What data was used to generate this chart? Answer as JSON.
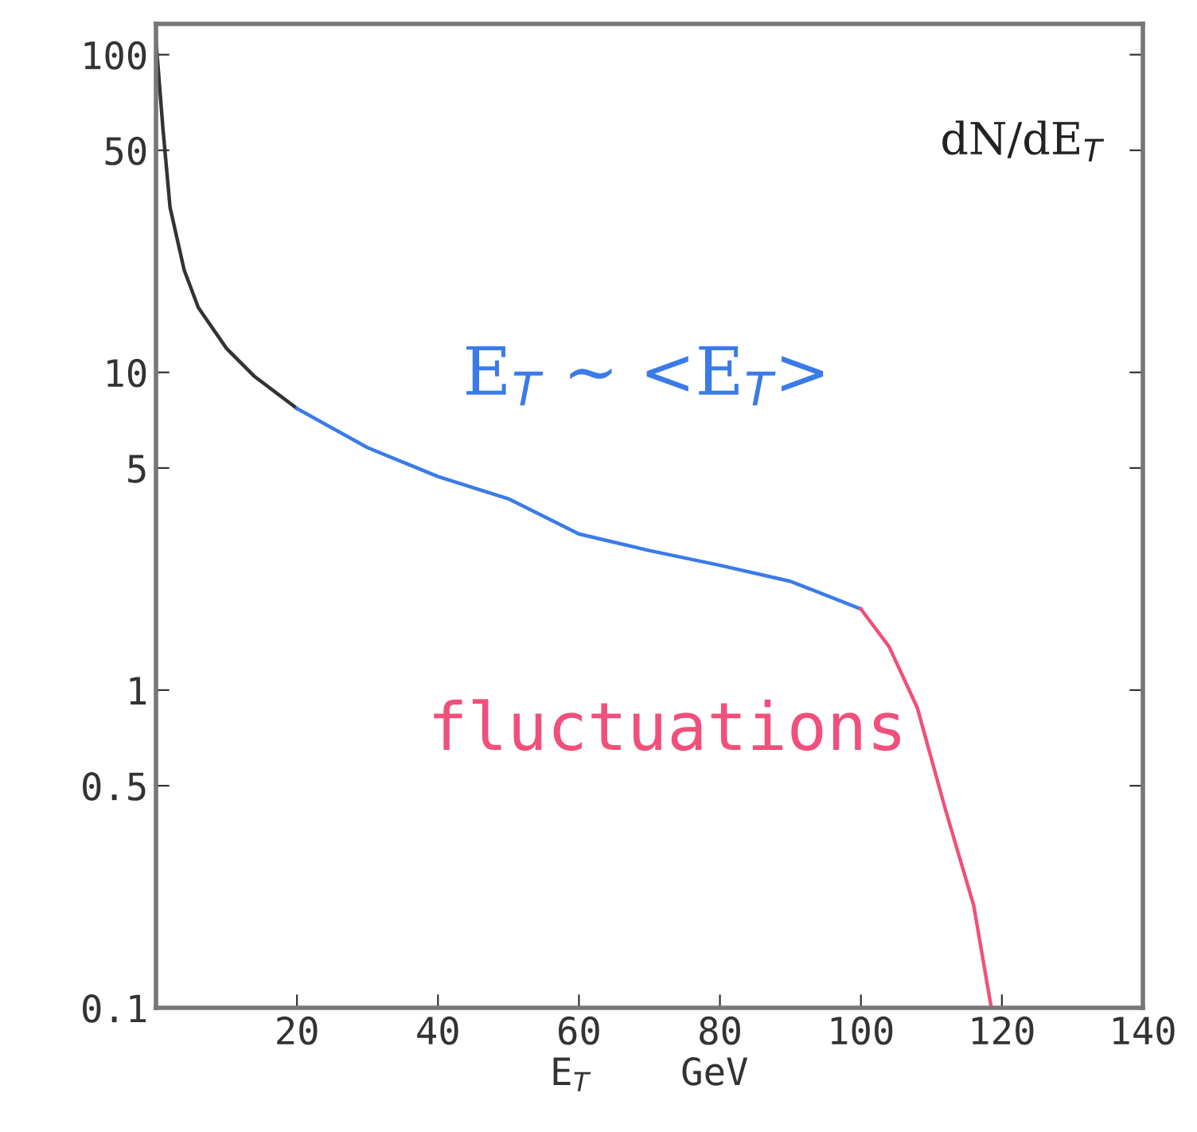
{
  "chart_data": {
    "type": "line",
    "ylabel": "dN/dE$_{T}$",
    "xlabel": "E$_{T}$    GeV",
    "log": "y",
    "xlim": [
      0,
      140
    ],
    "xticks": [
      20,
      40,
      60,
      80,
      100,
      120,
      140
    ],
    "ylim": [
      0.1,
      125
    ],
    "yticks": [
      0.1,
      0.5,
      1,
      5,
      10,
      50,
      100
    ],
    "grid": false,
    "legend": false,
    "series": [
      {
        "color": "#333333",
        "x": [
          0,
          1,
          2,
          4,
          6,
          10,
          14,
          20
        ],
        "values": [
          111,
          58,
          33,
          21,
          16,
          11.9,
          9.7,
          7.7
        ]
      },
      {
        "name": "E$_{T}$ ~ <E$_{T}$>",
        "color": "#3a7be8",
        "x": [
          20,
          30,
          40,
          50,
          60,
          70,
          80,
          90,
          100
        ],
        "values": [
          7.7,
          5.8,
          4.7,
          4.0,
          3.1,
          2.75,
          2.47,
          2.2,
          1.8
        ]
      },
      {
        "name": "fluctuations",
        "color": "#f0507a",
        "x": [
          100,
          104,
          108,
          112,
          116,
          118.5
        ],
        "values": [
          1.8,
          1.37,
          0.88,
          0.42,
          0.21,
          0.1
        ]
      }
    ]
  }
}
